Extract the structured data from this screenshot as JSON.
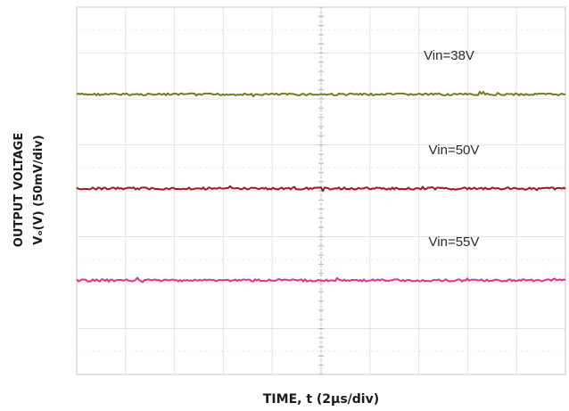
{
  "chart_data": {
    "type": "line",
    "title": "",
    "xlabel": "TIME, t (2µs/div)",
    "ylabel_line1": "OUTPUT VOLTAGE",
    "ylabel_line2": "Vₒ(V) (50mV/div)",
    "x_divisions": 10,
    "y_divisions": 8,
    "xlim": [
      0,
      10
    ],
    "ylim": [
      0,
      8
    ],
    "grid": true,
    "series": [
      {
        "name": "Vin=38V",
        "color": "#7a7a1c",
        "level": 6.1,
        "label_x": 7.1,
        "label_y": 6.85
      },
      {
        "name": "Vin=50V",
        "color": "#9e1b1b",
        "level": 4.05,
        "label_x": 7.2,
        "label_y": 4.8
      },
      {
        "name": "Vin=55V",
        "color": "#e0338f",
        "level": 2.05,
        "label_x": 7.2,
        "label_y": 2.8
      }
    ]
  }
}
